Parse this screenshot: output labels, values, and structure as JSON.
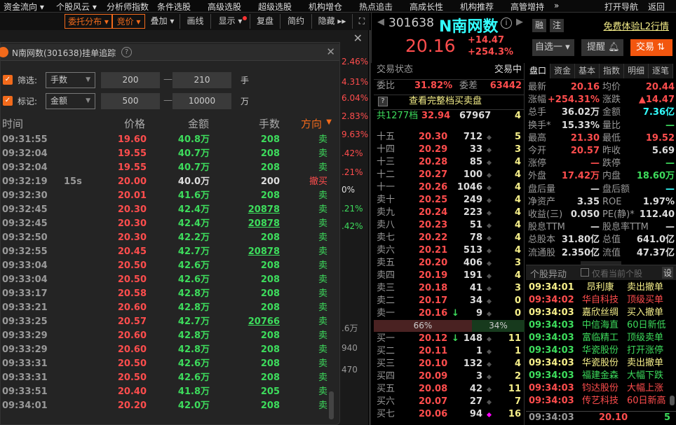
{
  "menubar": {
    "items": [
      "资金流向 ▾",
      "个股风云 ▾",
      "分析师指数",
      "条件选股",
      "高级选股",
      "超级选股",
      "机构增仓",
      "热点追击",
      "高成长性",
      "机构推荐",
      "高管增持",
      "»",
      "打开导航",
      "返回"
    ]
  },
  "toolbar": {
    "items": [
      "委托分布 ▾",
      "竞价 ▾",
      "叠加 ▾",
      "画线",
      "显示 ▾",
      "复盘",
      "简约",
      "隐藏 ▸▸"
    ],
    "fullscreen_icon": "expand-icon"
  },
  "behind": {
    "percentages": [
      {
        "v": "2.46%",
        "c": "r"
      },
      {
        "v": "4.31%",
        "c": "r"
      },
      {
        "v": "6.04%",
        "c": "r"
      },
      {
        "v": "2.83%",
        "c": "r"
      },
      {
        "v": "9.63%",
        "c": "r"
      },
      {
        "v": ".42%",
        "c": "r"
      },
      {
        "v": ".21%",
        "c": "r"
      },
      {
        "v": "0%",
        "c": "w"
      },
      {
        "v": ".21%",
        "c": "g"
      },
      {
        "v": ".42%",
        "c": "g"
      }
    ],
    "values": [
      ".6万",
      "940",
      "470"
    ]
  },
  "popup": {
    "title": "N南网数(301638)挂单追踪",
    "help": "?",
    "filter": {
      "label": "筛选:",
      "select": "手数",
      "min": "200",
      "max": "210",
      "dash": "—",
      "unit": "手"
    },
    "mark": {
      "label": "标记:",
      "select": "金额",
      "min": "500",
      "max": "10000",
      "dash": "—",
      "unit": "万"
    },
    "columns": [
      "时间",
      "价格",
      "金额",
      "手数",
      "方向"
    ],
    "rows": [
      [
        "09:31:55",
        "",
        "19.60",
        "40.8万",
        "208",
        "卖"
      ],
      [
        "09:32:04",
        "",
        "19.55",
        "40.7万",
        "208",
        "卖"
      ],
      [
        "09:32:04",
        "",
        "19.55",
        "40.7万",
        "208",
        "卖"
      ],
      [
        "09:32:19",
        "15s",
        "20.00",
        "40.0万",
        "200",
        "撤买"
      ],
      [
        "09:32:30",
        "",
        "20.01",
        "41.6万",
        "208",
        "卖"
      ],
      [
        "09:32:45",
        "",
        "20.30",
        "42.4万",
        "20878",
        "卖"
      ],
      [
        "09:32:45",
        "",
        "20.30",
        "42.4万",
        "20878",
        "卖"
      ],
      [
        "09:32:50",
        "",
        "20.30",
        "42.2万",
        "208",
        "卖"
      ],
      [
        "09:32:55",
        "",
        "20.45",
        "42.7万",
        "20878",
        "卖"
      ],
      [
        "09:33:04",
        "",
        "20.50",
        "42.6万",
        "208",
        "卖"
      ],
      [
        "09:33:04",
        "",
        "20.50",
        "42.6万",
        "208",
        "卖"
      ],
      [
        "09:33:17",
        "",
        "20.58",
        "42.8万",
        "208",
        "卖"
      ],
      [
        "09:33:21",
        "",
        "20.60",
        "42.8万",
        "208",
        "卖"
      ],
      [
        "09:33:25",
        "",
        "20.57",
        "42.7万",
        "20766",
        "卖"
      ],
      [
        "09:33:29",
        "",
        "20.60",
        "42.8万",
        "208",
        "卖"
      ],
      [
        "09:33:29",
        "",
        "20.60",
        "42.8万",
        "208",
        "卖"
      ],
      [
        "09:33:31",
        "",
        "20.50",
        "42.6万",
        "208",
        "卖"
      ],
      [
        "09:33:31",
        "",
        "20.50",
        "42.6万",
        "208",
        "卖"
      ],
      [
        "09:33:51",
        "",
        "20.40",
        "41.8万",
        "205",
        "卖"
      ],
      [
        "09:34:01",
        "",
        "20.20",
        "42.0万",
        "208",
        "卖"
      ]
    ]
  },
  "stock": {
    "code": "301638",
    "name": "N南网数",
    "price": "20.16",
    "change": "+14.47",
    "change_pct": "+254.3%",
    "tag1": "融",
    "tag2": "注",
    "l2_link": "免费体验L2行情",
    "watchlist": "自选一 ▾",
    "alert": "提醒",
    "trade": "交易"
  },
  "orderbook": {
    "status_label": "交易状态",
    "status": "交易中",
    "ratio_label": "委比",
    "ratio": "31.82%",
    "diff_label": "委差",
    "diff": "63442",
    "full_link": "查看完整档买卖盘",
    "summary": [
      "共1277档",
      "32.94",
      "67967",
      "4"
    ],
    "asks": [
      [
        "十五",
        "20.30",
        "712",
        "5"
      ],
      [
        "十四",
        "20.29",
        "33",
        "3"
      ],
      [
        "十三",
        "20.28",
        "85",
        "4"
      ],
      [
        "十二",
        "20.27",
        "100",
        "4"
      ],
      [
        "十一",
        "20.26",
        "1046",
        "4"
      ],
      [
        "卖十",
        "20.25",
        "249",
        "4"
      ],
      [
        "卖九",
        "20.24",
        "223",
        "4"
      ],
      [
        "卖八",
        "20.23",
        "51",
        "4"
      ],
      [
        "卖七",
        "20.22",
        "78",
        "4"
      ],
      [
        "卖六",
        "20.21",
        "513",
        "4"
      ],
      [
        "卖五",
        "20.20",
        "406",
        "3"
      ],
      [
        "卖四",
        "20.19",
        "191",
        "4"
      ],
      [
        "卖三",
        "20.18",
        "41",
        "3"
      ],
      [
        "卖二",
        "20.17",
        "34",
        "0"
      ],
      [
        "卖一",
        "20.16",
        "9",
        "0"
      ]
    ],
    "buy_pct": "66%",
    "sell_pct": "34%",
    "bids": [
      [
        "买一",
        "20.12",
        "148",
        "11"
      ],
      [
        "买二",
        "20.11",
        "1",
        "1"
      ],
      [
        "买三",
        "20.10",
        "132",
        "4"
      ],
      [
        "买四",
        "20.09",
        "3",
        "2"
      ],
      [
        "买五",
        "20.08",
        "42",
        "11"
      ],
      [
        "买六",
        "20.07",
        "27",
        "7"
      ],
      [
        "买七",
        "20.06",
        "94",
        "16"
      ]
    ]
  },
  "quote": {
    "tabs": [
      "盘口",
      "资金",
      "基本",
      "指数",
      "明细",
      "逐笔"
    ],
    "rows": [
      [
        "最新",
        "20.16",
        "r",
        "均价",
        "20.44",
        "r"
      ],
      [
        "涨幅",
        "+254.31%",
        "r",
        "涨跌",
        "▲14.47",
        "r"
      ],
      [
        "总手",
        "36.02万",
        "w",
        "金额",
        "7.36亿",
        "c"
      ],
      [
        "换手*",
        "15.33%",
        "w",
        "量比",
        "—",
        "g"
      ],
      [
        "最高",
        "21.30",
        "r",
        "最低",
        "19.52",
        "r"
      ],
      [
        "今开",
        "20.57",
        "r",
        "昨收",
        "5.69",
        "w"
      ],
      [
        "涨停",
        "—",
        "r",
        "跌停",
        "—",
        "g"
      ],
      [
        "外盘",
        "17.42万",
        "r",
        "内盘",
        "18.60万",
        "g"
      ],
      [
        "盘后量",
        "—",
        "w",
        "盘后额",
        "—",
        "c"
      ],
      [
        "净资产",
        "3.35",
        "w",
        "ROE",
        "1.97%",
        "w"
      ],
      [
        "收益(三)",
        "0.050",
        "w",
        "PE(静)*",
        "112.40",
        "w"
      ],
      [
        "股息TTM",
        "—",
        "w",
        "股息率TTM",
        "—",
        "w"
      ],
      [
        "总股本",
        "31.80亿",
        "w",
        "总值",
        "641.0亿",
        "w"
      ],
      [
        "流通股",
        "2.350亿",
        "w",
        "流值",
        "47.37亿",
        "w"
      ]
    ]
  },
  "events": {
    "title": "个股异动",
    "checkbox_label": "仅看当前个股",
    "settings": "设",
    "rows": [
      [
        "09:34:01",
        "昂利康",
        "卖出撤单",
        "y"
      ],
      [
        "09:34:02",
        "华自科技",
        "顶级买单",
        "r"
      ],
      [
        "09:34:03",
        "嘉欣丝绸",
        "买入撤单",
        "y"
      ],
      [
        "09:34:03",
        "中信海直",
        "60日新低",
        "g"
      ],
      [
        "09:34:03",
        "富临精工",
        "顶级卖单",
        "g"
      ],
      [
        "09:34:03",
        "华瓷股份",
        "打开涨停",
        "g"
      ],
      [
        "09:34:03",
        "华瓷股份",
        "卖出撤单",
        "y"
      ],
      [
        "09:34:03",
        "福建金森",
        "大幅下跌",
        "g"
      ],
      [
        "09:34:03",
        "钧达股份",
        "大幅上涨",
        "r"
      ],
      [
        "09:34:03",
        "传艺科技",
        "60日新高",
        "r"
      ]
    ],
    "last_tick": [
      "09:34:03",
      "20.10",
      "5"
    ]
  },
  "colors": {
    "accent": "#f26a1b",
    "up": "#ff4d4d",
    "down": "#3ddc5c",
    "cyan": "#33ffff",
    "yellow": "#f7f08a"
  }
}
